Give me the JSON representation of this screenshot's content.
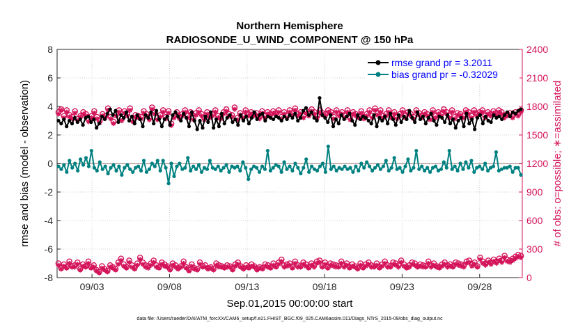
{
  "colors": {
    "rmse": "#000000",
    "bias": "#008080",
    "obs": "#d4145a",
    "zero_line": "#c8b4b4",
    "grid": "#d0d0d0",
    "legend_text": "#0000ff"
  },
  "chart_data": {
    "type": "line",
    "title": "Northern Hemisphere",
    "subtitle": "RADIOSONDE_U_WIND_COMPONENT @ 150 hPa",
    "xlabel": "Sep.01,2015 00:00:00 start",
    "ylabel_left": "rmse and bias (model - observation)",
    "ylabel_right": "# of obs: o=possible; ∗=assimilated",
    "footnote": "data file: /Users/raeder/DAI/ATM_forcXX/CAM6_setup/f.e21.FHIST_BGC.f09_025.CAM6assim.011/Diags_NTrS_2015-09/obs_diag_output.nc",
    "xlim": [
      0.75,
      30.75
    ],
    "ylim_left": [
      -8,
      8
    ],
    "ylim_right": [
      0,
      2400
    ],
    "x_ticks": [
      {
        "value": 3,
        "label": "09/03"
      },
      {
        "value": 8,
        "label": "09/08"
      },
      {
        "value": 13,
        "label": "09/13"
      },
      {
        "value": 18,
        "label": "09/18"
      },
      {
        "value": 23,
        "label": "09/23"
      },
      {
        "value": 28,
        "label": "09/28"
      }
    ],
    "y_left_ticks": [
      8,
      6,
      4,
      2,
      0,
      -2,
      -4,
      -6,
      -8
    ],
    "y_right_ticks": [
      2400,
      2100,
      1800,
      1500,
      1200,
      900,
      600,
      300,
      0
    ],
    "legend": [
      {
        "label": "rmse grand pr = 3.2011",
        "series": "rmse"
      },
      {
        "label": "bias grand pr = -0.32029",
        "series": "bias"
      }
    ],
    "series": [
      {
        "name": "rmse",
        "axis": "left",
        "values": [
          3.0,
          2.8,
          3.1,
          2.6,
          3.0,
          2.8,
          3.2,
          2.9,
          3.1,
          2.7,
          3.2,
          3.3,
          2.9,
          3.1,
          2.5,
          2.8,
          3.3,
          3.1,
          3.5,
          3.8,
          3.4,
          3.7,
          2.9,
          3.4,
          3.2,
          3.6,
          3.0,
          3.3,
          2.8,
          3.4,
          3.1,
          2.6,
          3.4,
          3.2,
          3.6,
          2.8,
          3.7,
          3.1,
          2.6,
          3.1,
          3.3,
          2.7,
          3.4,
          3.6,
          3.3,
          3.0,
          3.5,
          3.2,
          2.6,
          3.6,
          3.0,
          2.4,
          3.0,
          2.5,
          3.3,
          2.9,
          3.6,
          2.5,
          3.1,
          2.6,
          3.5,
          2.8,
          3.2,
          3.4,
          2.9,
          3.1,
          2.7,
          3.4,
          3.0,
          3.3,
          2.8,
          3.2,
          3.6,
          3.1,
          3.4,
          3.5,
          3.0,
          3.3,
          3.2,
          3.1,
          3.3,
          3.2,
          3.0,
          3.3,
          3.1,
          3.4,
          3.2,
          3.5,
          3.0,
          3.2,
          3.7,
          3.9,
          3.4,
          3.6,
          3.2,
          3.0,
          4.6,
          3.4,
          3.2,
          2.9,
          3.4,
          2.6,
          3.1,
          2.8,
          3.4,
          3.1,
          3.3,
          3.5,
          3.0,
          2.7,
          3.4,
          3.1,
          3.3,
          3.2,
          3.0,
          2.8,
          3.4,
          2.6,
          3.2,
          3.0,
          3.3,
          2.8,
          3.5,
          3.1,
          2.7,
          3.4,
          2.9,
          3.3,
          3.1,
          3.7,
          3.2,
          2.9,
          3.6,
          3.1,
          3.3,
          2.8,
          3.2,
          3.5,
          3.0,
          2.7,
          3.3,
          3.2,
          2.9,
          3.4,
          2.8,
          3.1,
          2.5,
          3.0,
          3.2,
          2.6,
          3.5,
          2.8,
          3.1,
          2.4,
          3.2,
          3.4,
          2.8,
          3.3,
          3.0,
          2.9,
          3.4,
          3.2,
          3.3,
          3.1,
          3.4,
          3.6,
          3.3,
          3.6,
          3.5,
          3.7,
          3.8
        ]
      },
      {
        "name": "bias",
        "axis": "left",
        "values": [
          -0.2,
          -0.4,
          -0.1,
          -0.6,
          0.2,
          -0.3,
          0.0,
          -0.5,
          0.3,
          -0.1,
          0.4,
          -0.2,
          0.9,
          -0.3,
          -0.5,
          0.1,
          -0.4,
          -0.2,
          -0.7,
          -0.3,
          -0.1,
          -0.5,
          -0.2,
          -0.8,
          -0.3,
          -0.1,
          -0.4,
          -0.6,
          -0.3,
          -0.2,
          -0.5,
          0.2,
          -0.6,
          -0.4,
          0.0,
          -0.2,
          0.2,
          -0.5,
          0.2,
          -0.3,
          -1.4,
          0.0,
          -0.9,
          -0.2,
          0.0,
          -0.4,
          -0.3,
          0.4,
          -0.5,
          -0.2,
          -0.4,
          -0.1,
          -0.6,
          -0.3,
          -0.4,
          0.2,
          -0.3,
          -0.4,
          -0.2,
          -0.5,
          -0.3,
          -0.1,
          -0.6,
          -0.2,
          -0.3,
          -0.2,
          -0.5,
          0.1,
          -0.3,
          -1.1,
          -0.4,
          -0.2,
          -0.3,
          -0.6,
          -0.2,
          -0.4,
          0.9,
          -0.5,
          -0.3,
          -0.1,
          -0.2,
          -0.6,
          0.1,
          -0.4,
          -0.2,
          -0.5,
          0.0,
          -0.3,
          -0.7,
          -0.3,
          0.3,
          -0.6,
          -0.2,
          -0.4,
          -0.5,
          -0.2,
          0.0,
          -0.6,
          1.2,
          -0.4,
          -0.2,
          -0.5,
          -0.3,
          -0.4,
          -0.2,
          -0.4,
          -0.3,
          -0.6,
          -0.2,
          -0.5,
          0.0,
          -0.3,
          0.1,
          -0.2,
          -0.5,
          -0.3,
          -0.1,
          -0.4,
          -0.2,
          0.2,
          -0.5,
          -0.3,
          0.4,
          -0.4,
          -0.3,
          -0.6,
          -0.2,
          0.3,
          -0.5,
          -0.3,
          0.9,
          -0.4,
          -0.2,
          -0.5,
          -0.3,
          -0.6,
          -0.3,
          -0.2,
          -0.5,
          -0.4,
          0.1,
          -0.3,
          0.9,
          -0.4,
          -0.2,
          -0.5,
          0.0,
          -0.4,
          0.1,
          -0.3,
          0.2,
          -0.6,
          -0.3,
          -0.2,
          -0.4,
          0.0,
          -0.5,
          -0.3,
          -0.2,
          0.8,
          -0.5,
          -0.4,
          -0.3,
          -0.3,
          -0.2,
          -0.6,
          -0.3,
          -0.3,
          -0.8
        ]
      },
      {
        "name": "possible",
        "axis": "right",
        "values": [
          1740,
          1770,
          1700,
          1760,
          1710,
          1690,
          1750,
          1670,
          1700,
          1740,
          1720,
          1660,
          1700,
          1750,
          1690,
          1650,
          1720,
          1700,
          1780,
          1690,
          1640,
          1720,
          1760,
          1670,
          1750,
          1720,
          1780,
          1660,
          1710,
          1700,
          1690,
          1750,
          1720,
          1680,
          1790,
          1740,
          1680,
          1710,
          1760,
          1690,
          1750,
          1620,
          1700,
          1740,
          1690,
          1720,
          1760,
          1700,
          1740,
          1680,
          1730,
          1760,
          1720,
          1680,
          1740,
          1700,
          1720,
          1760,
          1700,
          1690,
          1740,
          1770,
          1720,
          1710,
          1790,
          1680,
          1730,
          1700,
          1760,
          1720,
          1740,
          1720,
          1730,
          1690,
          1750,
          1700,
          1740,
          1720,
          1750,
          1730,
          1760,
          1690,
          1740,
          1700,
          1760,
          1730,
          1780,
          1720,
          1740,
          1700,
          1750,
          1720,
          1770,
          1740,
          1700,
          1760,
          1730,
          1720,
          1760,
          1740,
          1690,
          1760,
          1720,
          1740,
          1700,
          1760,
          1680,
          1740,
          1720,
          1700,
          1750,
          1690,
          1720,
          1760,
          1700,
          1780,
          1730,
          1760,
          1700,
          1720,
          1760,
          1700,
          1740,
          1690,
          1720,
          1760,
          1700,
          1740,
          1720,
          1690,
          1760,
          1730,
          1700,
          1740,
          1720,
          1680,
          1760,
          1700,
          1740,
          1720,
          1770,
          1740,
          1700,
          1760,
          1690,
          1730,
          1720,
          1700,
          1760,
          1740,
          1700,
          1760,
          1720,
          1740,
          1760,
          1700,
          1740,
          1720,
          1750,
          1730,
          1760,
          1740,
          1700,
          1720,
          1730,
          1700,
          1740,
          1720,
          1760
        ]
      },
      {
        "name": "assimilated",
        "axis": "right",
        "values": [
          1720,
          1760,
          1680,
          1740,
          1690,
          1670,
          1730,
          1650,
          1690,
          1720,
          1700,
          1640,
          1680,
          1730,
          1670,
          1630,
          1700,
          1680,
          1760,
          1670,
          1620,
          1700,
          1740,
          1650,
          1730,
          1700,
          1760,
          1640,
          1690,
          1680,
          1670,
          1730,
          1700,
          1660,
          1770,
          1720,
          1660,
          1690,
          1740,
          1670,
          1730,
          1600,
          1680,
          1720,
          1670,
          1700,
          1740,
          1680,
          1720,
          1660,
          1710,
          1740,
          1700,
          1660,
          1720,
          1680,
          1700,
          1740,
          1680,
          1670,
          1720,
          1750,
          1700,
          1690,
          1770,
          1660,
          1710,
          1680,
          1740,
          1700,
          1720,
          1700,
          1710,
          1670,
          1730,
          1680,
          1720,
          1700,
          1730,
          1710,
          1740,
          1670,
          1720,
          1680,
          1740,
          1710,
          1760,
          1700,
          1720,
          1680,
          1730,
          1700,
          1750,
          1720,
          1680,
          1740,
          1710,
          1700,
          1740,
          1720,
          1670,
          1740,
          1700,
          1720,
          1680,
          1740,
          1660,
          1720,
          1700,
          1680,
          1730,
          1670,
          1700,
          1740,
          1680,
          1760,
          1710,
          1740,
          1680,
          1700,
          1740,
          1680,
          1720,
          1670,
          1700,
          1740,
          1680,
          1720,
          1700,
          1670,
          1740,
          1710,
          1680,
          1720,
          1700,
          1660,
          1740,
          1680,
          1720,
          1700,
          1750,
          1720,
          1680,
          1740,
          1670,
          1710,
          1700,
          1680,
          1740,
          1720,
          1680,
          1740,
          1700,
          1720,
          1740,
          1680,
          1720,
          1700,
          1730,
          1710,
          1740,
          1720,
          1680,
          1700,
          1710,
          1680,
          1720,
          1700,
          1740
        ]
      },
      {
        "name": "possible_low",
        "axis": "right",
        "values": [
          150,
          100,
          140,
          110,
          170,
          120,
          130,
          160,
          90,
          140,
          120,
          170,
          110,
          130,
          80,
          60,
          120,
          90,
          70,
          130,
          110,
          90,
          160,
          200,
          140,
          110,
          180,
          130,
          100,
          150,
          210,
          160,
          130,
          120,
          150,
          180,
          130,
          110,
          160,
          140,
          120,
          90,
          150,
          130,
          100,
          120,
          170,
          110,
          80,
          140,
          100,
          90,
          160,
          120,
          130,
          100,
          110,
          90,
          150,
          130,
          120,
          110,
          130,
          120,
          90,
          140,
          160,
          120,
          100,
          130,
          110,
          140,
          120,
          90,
          110,
          100,
          140,
          130,
          110,
          150,
          120,
          160,
          190,
          130,
          140,
          150,
          110,
          170,
          130,
          120,
          160,
          140,
          110,
          150,
          130,
          170,
          180,
          120,
          160,
          110,
          150,
          140,
          130,
          120,
          170,
          130,
          150,
          110,
          140,
          120,
          100,
          150,
          110,
          140,
          160,
          130,
          120,
          150,
          110,
          140,
          170,
          130,
          120,
          160,
          150,
          130,
          180,
          140,
          110,
          130,
          160,
          150,
          120,
          140,
          130,
          120,
          170,
          130,
          150,
          120,
          110,
          140,
          160,
          130,
          140,
          120,
          160,
          150,
          140,
          130,
          170,
          180,
          140,
          160,
          120,
          210,
          170,
          150,
          180,
          160,
          190,
          170,
          200,
          180,
          230,
          190,
          180,
          200,
          220,
          240,
          230
        ]
      },
      {
        "name": "assimilated_low",
        "axis": "right",
        "values": [
          130,
          90,
          120,
          100,
          150,
          110,
          110,
          140,
          80,
          120,
          110,
          150,
          100,
          110,
          70,
          50,
          100,
          80,
          60,
          110,
          100,
          80,
          140,
          180,
          120,
          100,
          160,
          110,
          90,
          130,
          190,
          140,
          110,
          100,
          130,
          160,
          110,
          100,
          140,
          120,
          110,
          80,
          130,
          110,
          90,
          110,
          150,
          100,
          70,
          120,
          90,
          80,
          140,
          110,
          110,
          90,
          100,
          80,
          130,
          110,
          110,
          100,
          110,
          110,
          80,
          120,
          140,
          110,
          90,
          110,
          100,
          120,
          110,
          80,
          100,
          90,
          120,
          110,
          100,
          130,
          110,
          140,
          170,
          110,
          120,
          130,
          100,
          150,
          110,
          110,
          140,
          120,
          100,
          130,
          110,
          150,
          160,
          110,
          140,
          100,
          130,
          120,
          110,
          110,
          150,
          110,
          130,
          100,
          120,
          110,
          90,
          130,
          100,
          120,
          140,
          110,
          110,
          130,
          100,
          120,
          150,
          110,
          110,
          140,
          130,
          110,
          160,
          120,
          100,
          110,
          140,
          130,
          110,
          120,
          110,
          110,
          150,
          110,
          130,
          110,
          100,
          120,
          140,
          110,
          120,
          110,
          140,
          130,
          120,
          110,
          150,
          160,
          120,
          140,
          110,
          190,
          150,
          130,
          160,
          140,
          170,
          150,
          180,
          160,
          210,
          170,
          160,
          180,
          200,
          220,
          210
        ]
      }
    ]
  }
}
